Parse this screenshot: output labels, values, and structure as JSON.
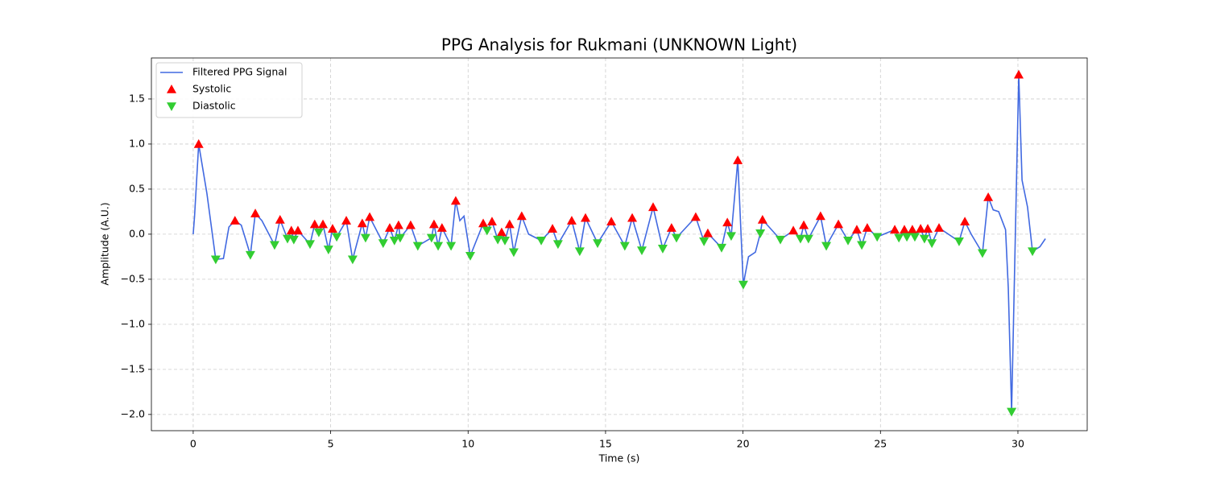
{
  "chart_data": {
    "type": "line",
    "title": "PPG Analysis for Rukmani (UNKNOWN Light)",
    "xlabel": "Time (s)",
    "ylabel": "Amplitude (A.U.)",
    "xlim": [
      -1.52,
      32.52
    ],
    "ylim": [
      -2.18,
      1.955
    ],
    "xticks": [
      0,
      5,
      10,
      15,
      20,
      25,
      30
    ],
    "yticks": [
      {
        "value": -2,
        "label": "−2.0"
      },
      {
        "value": -1.5,
        "label": "−1.5"
      },
      {
        "value": -1,
        "label": "−1.0"
      },
      {
        "value": -0.5,
        "label": "−0.5"
      },
      {
        "value": 0,
        "label": "0.0"
      },
      0.5,
      {
        "value": 1,
        "label": "1.0"
      },
      1.5
    ],
    "grid": true,
    "legend": "upper left",
    "series": [
      {
        "name": "Filtered PPG Signal",
        "type": "line",
        "color": "#4169e1",
        "x": [
          0,
          0.05,
          0.2,
          0.5,
          0.82,
          1.1,
          1.3,
          1.52,
          1.75,
          2.08,
          2.26,
          2.5,
          2.96,
          3.16,
          3.43,
          3.57,
          3.66,
          3.81,
          4.25,
          4.42,
          4.57,
          4.72,
          4.92,
          5.07,
          5.22,
          5.57,
          5.8,
          6.15,
          6.27,
          6.42,
          6.91,
          7.15,
          7.32,
          7.47,
          7.53,
          7.91,
          8.17,
          8.67,
          8.76,
          8.91,
          9.05,
          9.38,
          9.55,
          9.7,
          9.85,
          10.08,
          10.55,
          10.69,
          10.87,
          11.08,
          11.22,
          11.34,
          11.51,
          11.66,
          11.95,
          12.2,
          12.66,
          13.07,
          13.27,
          13.77,
          14.06,
          14.27,
          14.71,
          15.21,
          15.7,
          15.97,
          16.32,
          16.73,
          17.08,
          17.4,
          17.58,
          18.28,
          18.58,
          18.72,
          19.22,
          19.43,
          19.57,
          19.81,
          20.01,
          20.2,
          20.45,
          20.63,
          20.71,
          21.36,
          21.83,
          22.09,
          22.21,
          22.38,
          22.82,
          23.03,
          23.47,
          23.82,
          24.14,
          24.32,
          24.52,
          24.88,
          25.52,
          25.67,
          25.87,
          25.96,
          26.16,
          26.25,
          26.46,
          26.6,
          26.72,
          26.87,
          27.13,
          27.86,
          28.07,
          28.3,
          28.71,
          28.92,
          29.1,
          29.3,
          29.55,
          29.65,
          29.77,
          30.03,
          30.15,
          30.35,
          30.53,
          30.8,
          31.0
        ],
        "values": [
          0,
          0.2,
          1.0,
          0.45,
          -0.28,
          -0.27,
          0.08,
          0.15,
          0.1,
          -0.23,
          0.23,
          0.15,
          -0.12,
          0.16,
          -0.05,
          0.04,
          -0.06,
          0.04,
          -0.11,
          0.11,
          0.02,
          0.11,
          -0.17,
          0.06,
          -0.03,
          0.15,
          -0.28,
          0.12,
          -0.04,
          0.19,
          -0.1,
          0.07,
          -0.07,
          0.1,
          -0.04,
          0.1,
          -0.13,
          -0.04,
          0.11,
          -0.13,
          0.07,
          -0.13,
          0.37,
          0.15,
          0.2,
          -0.24,
          0.12,
          0.04,
          0.14,
          -0.06,
          0.02,
          -0.07,
          0.11,
          -0.2,
          0.2,
          0.0,
          -0.07,
          0.06,
          -0.11,
          0.15,
          -0.19,
          0.18,
          -0.1,
          0.14,
          -0.13,
          0.18,
          -0.18,
          0.3,
          -0.16,
          0.07,
          -0.04,
          0.19,
          -0.08,
          0.01,
          -0.15,
          0.13,
          -0.02,
          0.82,
          -0.56,
          -0.25,
          -0.2,
          0.01,
          0.16,
          -0.06,
          0.04,
          -0.05,
          0.1,
          -0.05,
          0.2,
          -0.13,
          0.11,
          -0.07,
          0.05,
          -0.12,
          0.07,
          -0.03,
          0.05,
          -0.04,
          0.05,
          -0.03,
          0.05,
          -0.03,
          0.06,
          -0.05,
          0.06,
          -0.1,
          0.07,
          -0.08,
          0.14,
          0.0,
          -0.21,
          0.41,
          0.27,
          0.25,
          0.05,
          -0.6,
          -1.97,
          1.77,
          0.6,
          0.3,
          -0.19,
          -0.14,
          -0.05
        ]
      },
      {
        "name": "Systolic",
        "type": "scatter",
        "marker": "triangle-up",
        "color": "#ff0000",
        "x": [
          0.2,
          1.52,
          2.26,
          3.16,
          3.57,
          3.81,
          4.42,
          4.72,
          5.07,
          5.57,
          6.15,
          6.42,
          7.15,
          7.47,
          7.91,
          8.76,
          9.05,
          9.55,
          10.55,
          10.87,
          11.22,
          11.51,
          11.95,
          13.07,
          13.77,
          14.27,
          15.21,
          15.97,
          16.73,
          17.4,
          18.28,
          18.72,
          19.43,
          19.81,
          20.71,
          21.83,
          22.21,
          22.82,
          23.47,
          24.14,
          24.52,
          25.52,
          25.87,
          26.16,
          26.46,
          26.72,
          27.13,
          28.07,
          28.92,
          30.03
        ],
        "values": [
          1.0,
          0.15,
          0.23,
          0.16,
          0.04,
          0.04,
          0.11,
          0.11,
          0.06,
          0.15,
          0.12,
          0.19,
          0.07,
          0.1,
          0.1,
          0.11,
          0.07,
          0.37,
          0.12,
          0.14,
          0.02,
          0.11,
          0.2,
          0.06,
          0.15,
          0.18,
          0.14,
          0.18,
          0.3,
          0.07,
          0.19,
          0.01,
          0.13,
          0.82,
          0.16,
          0.04,
          0.1,
          0.2,
          0.11,
          0.05,
          0.07,
          0.05,
          0.05,
          0.05,
          0.06,
          0.06,
          0.07,
          0.14,
          0.41,
          1.77
        ]
      },
      {
        "name": "Diastolic",
        "type": "scatter",
        "marker": "triangle-down",
        "color": "#32cd32",
        "x": [
          0.82,
          2.08,
          2.96,
          3.43,
          3.66,
          4.25,
          4.57,
          4.92,
          5.22,
          5.8,
          6.27,
          6.91,
          7.32,
          7.53,
          8.17,
          8.67,
          8.91,
          9.38,
          10.08,
          10.69,
          11.08,
          11.34,
          11.66,
          12.66,
          13.27,
          14.06,
          14.71,
          15.7,
          16.32,
          17.08,
          17.58,
          18.58,
          19.22,
          19.57,
          20.01,
          20.63,
          21.36,
          22.09,
          22.38,
          23.03,
          23.82,
          24.32,
          24.88,
          25.67,
          25.96,
          26.25,
          26.6,
          26.87,
          27.86,
          28.71,
          29.77,
          30.53
        ],
        "values": [
          -0.28,
          -0.23,
          -0.12,
          -0.05,
          -0.06,
          -0.11,
          0.02,
          -0.17,
          -0.03,
          -0.28,
          -0.04,
          -0.1,
          -0.07,
          -0.04,
          -0.13,
          -0.04,
          -0.13,
          -0.13,
          -0.24,
          0.04,
          -0.06,
          -0.07,
          -0.2,
          -0.07,
          -0.11,
          -0.19,
          -0.1,
          -0.13,
          -0.18,
          -0.16,
          -0.04,
          -0.08,
          -0.15,
          -0.02,
          -0.56,
          0.01,
          -0.06,
          -0.05,
          -0.05,
          -0.13,
          -0.07,
          -0.12,
          -0.03,
          -0.04,
          -0.03,
          -0.03,
          -0.05,
          -0.1,
          -0.08,
          -0.21,
          -1.97,
          -0.19
        ]
      }
    ]
  }
}
